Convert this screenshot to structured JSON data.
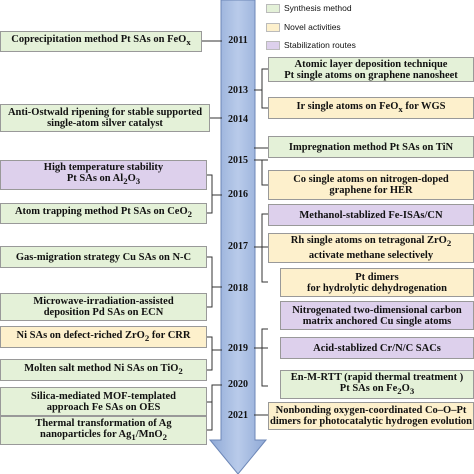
{
  "legend": {
    "synthesis": "Synthesis method",
    "novel": "Novel activities",
    "stabilization": "Stabilization routes",
    "colors": {
      "synthesis": "#e4f1d8",
      "novel": "#fdf0cc",
      "stabilization": "#ddd0ec"
    }
  },
  "years": [
    "2011",
    "2013",
    "2014",
    "2015",
    "2016",
    "2017",
    "2018",
    "2019",
    "2020",
    "2021"
  ],
  "left": [
    {
      "line1": "Coprecipitation method Pt SAs on FeO",
      "sub": "x"
    },
    {
      "line1": "Anti-Ostwald ripening for stable supported",
      "line2": "single-atom silver catalyst"
    },
    {
      "line1": "High temperature stability",
      "line2": "Pt SAs on Al",
      "sub2": "2",
      "tail2": "O",
      "sub2b": "3"
    },
    {
      "line1": "Atom trapping method Pt SAs on CeO",
      "sub": "2"
    },
    {
      "line1": "Gas-migration strategy Cu SAs on N-C"
    },
    {
      "line1": "Microwave-irradiation-assisted",
      "line2": "deposition Pd SAs on ECN"
    },
    {
      "line1": "Ni SAs on defect-riched ZrO",
      "sub": "2",
      "tail": " for CRR"
    },
    {
      "line1": "Molten salt method Ni SAs on TiO",
      "sub": "2"
    },
    {
      "line1": "Silica-mediated MOF-templated",
      "line2": "approach Fe SAs on OES"
    },
    {
      "line1": "Thermal transformation of Ag",
      "line2": "nanoparticles for Ag",
      "sub2": "1",
      "tail2": "/MnO",
      "sub2b": "2"
    }
  ],
  "right": [
    {
      "line1": "Atomic layer deposition technique",
      "line2": "Pt single atoms on graphene nanosheet"
    },
    {
      "line1": "Ir single atoms on FeO",
      "sub": "x",
      "tail": " for WGS"
    },
    {
      "line1": "Impregnation method Pt SAs on TiN"
    },
    {
      "line1": "Co single atoms on nitrogen-doped",
      "line2": "graphene for HER"
    },
    {
      "line1": "Methanol-stablized Fe-ISAs/CN"
    },
    {
      "line1": "Rh single atoms on tetragonal ZrO",
      "sub": "2",
      "line2": "activate methane selectively"
    },
    {
      "line1": "Pt dimers",
      "line2": "for hydrolytic dehydrogenation"
    },
    {
      "line1": "Nitrogenated two-dimensional carbon",
      "line2": "matrix anchored Cu single atoms"
    },
    {
      "line1": "Acid-stablized Cr/N/C SACs"
    },
    {
      "line1": "En-M-RTT (rapid thermal treatment )",
      "line2": "Pt SAs on Fe",
      "sub2": "2",
      "tail2": "O",
      "sub2b": "3"
    },
    {
      "line1": "Nonbonding oxygen-coordinated Co–O–Pt",
      "line2": "dimers for photocatalytic hydrogen evolution"
    }
  ]
}
